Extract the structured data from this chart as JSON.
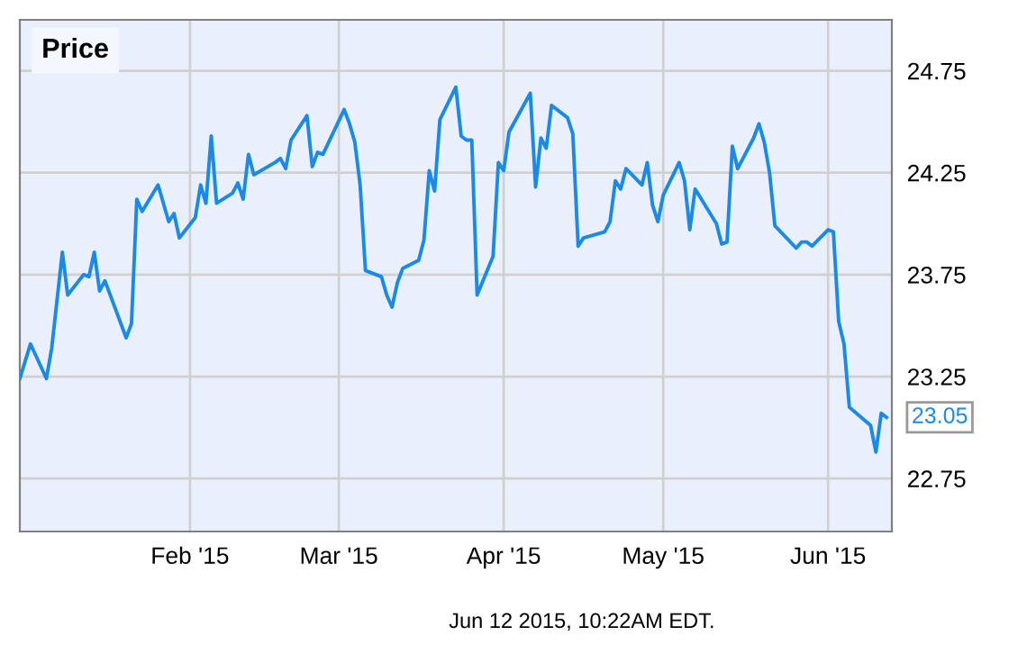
{
  "chart_data": {
    "type": "line",
    "title": "Price",
    "x": [
      "2014-12-31",
      "2015-01-02",
      "2015-01-05",
      "2015-01-06",
      "2015-01-08",
      "2015-01-09",
      "2015-01-12",
      "2015-01-13",
      "2015-01-14",
      "2015-01-15",
      "2015-01-16",
      "2015-01-20",
      "2015-01-21",
      "2015-01-22",
      "2015-01-23",
      "2015-01-26",
      "2015-01-28",
      "2015-01-29",
      "2015-01-30",
      "2015-02-02",
      "2015-02-03",
      "2015-02-04",
      "2015-02-05",
      "2015-02-06",
      "2015-02-09",
      "2015-02-10",
      "2015-02-11",
      "2015-02-12",
      "2015-02-13",
      "2015-02-17",
      "2015-02-18",
      "2015-02-19",
      "2015-02-20",
      "2015-02-23",
      "2015-02-24",
      "2015-02-25",
      "2015-02-26",
      "2015-03-02",
      "2015-03-03",
      "2015-03-04",
      "2015-03-05",
      "2015-03-06",
      "2015-03-09",
      "2015-03-10",
      "2015-03-11",
      "2015-03-12",
      "2015-03-13",
      "2015-03-16",
      "2015-03-17",
      "2015-03-18",
      "2015-03-19",
      "2015-03-20",
      "2015-03-23",
      "2015-03-24",
      "2015-03-25",
      "2015-03-26",
      "2015-03-27",
      "2015-03-30",
      "2015-03-31",
      "2015-04-01",
      "2015-04-02",
      "2015-04-06",
      "2015-04-07",
      "2015-04-08",
      "2015-04-09",
      "2015-04-10",
      "2015-04-13",
      "2015-04-14",
      "2015-04-15",
      "2015-04-16",
      "2015-04-20",
      "2015-04-21",
      "2015-04-22",
      "2015-04-23",
      "2015-04-24",
      "2015-04-27",
      "2015-04-28",
      "2015-04-29",
      "2015-04-30",
      "2015-05-01",
      "2015-05-04",
      "2015-05-05",
      "2015-05-06",
      "2015-05-07",
      "2015-05-11",
      "2015-05-12",
      "2015-05-13",
      "2015-05-14",
      "2015-05-15",
      "2015-05-18",
      "2015-05-19",
      "2015-05-20",
      "2015-05-21",
      "2015-05-22",
      "2015-05-26",
      "2015-05-27",
      "2015-05-28",
      "2015-05-29",
      "2015-06-01",
      "2015-06-02",
      "2015-06-03",
      "2015-06-04",
      "2015-06-05",
      "2015-06-09",
      "2015-06-10",
      "2015-06-11",
      "2015-06-12"
    ],
    "series": [
      {
        "color": "#1a8ae8",
        "values": [
          23.24,
          23.41,
          23.24,
          23.39,
          23.86,
          23.65,
          23.75,
          23.74,
          23.86,
          23.67,
          23.72,
          23.44,
          23.51,
          24.12,
          24.06,
          24.19,
          24.01,
          24.05,
          23.93,
          24.03,
          24.19,
          24.1,
          24.43,
          24.1,
          24.15,
          24.2,
          24.12,
          24.34,
          24.24,
          24.3,
          24.32,
          24.27,
          24.41,
          24.53,
          24.28,
          24.35,
          24.34,
          24.56,
          24.49,
          24.4,
          24.19,
          23.77,
          23.74,
          23.65,
          23.59,
          23.71,
          23.78,
          23.82,
          23.92,
          24.26,
          24.16,
          24.51,
          24.67,
          24.43,
          24.41,
          24.41,
          23.65,
          23.84,
          24.3,
          24.26,
          24.45,
          24.64,
          24.18,
          24.42,
          24.37,
          24.58,
          24.52,
          24.44,
          23.89,
          23.93,
          23.96,
          24.01,
          24.21,
          24.17,
          24.27,
          24.19,
          24.3,
          24.09,
          24.01,
          24.14,
          24.3,
          24.21,
          23.97,
          24.17,
          24.0,
          23.9,
          23.91,
          24.38,
          24.27,
          24.42,
          24.49,
          24.4,
          24.25,
          23.99,
          23.88,
          23.91,
          23.91,
          23.89,
          23.97,
          23.96,
          23.52,
          23.41,
          23.1,
          23.01,
          22.88,
          23.07,
          23.05
        ],
        "value_labels": [
          null,
          null,
          null,
          null,
          null,
          null,
          null,
          null,
          null,
          null,
          null,
          null,
          null,
          null,
          null,
          null,
          null,
          null,
          null,
          null,
          null,
          null,
          null,
          null,
          null,
          null,
          null,
          null,
          null,
          null,
          null,
          null,
          null,
          null,
          null,
          null,
          null,
          null,
          null,
          null,
          null,
          null,
          null,
          null,
          null,
          null,
          null,
          null,
          null,
          null,
          null,
          null,
          null,
          null,
          null,
          null,
          null,
          null,
          null,
          null,
          null,
          null,
          null,
          null,
          null,
          null,
          null,
          null,
          null,
          null,
          null,
          null,
          null,
          null,
          null,
          null,
          null,
          null,
          null,
          null,
          null,
          null,
          null,
          null,
          null,
          null,
          null,
          null,
          null,
          null,
          null,
          null,
          null,
          null,
          null,
          null,
          null,
          null,
          null,
          null,
          null,
          null,
          null,
          null,
          null,
          null,
          "23.05"
        ]
      }
    ],
    "xlim": [
      "2014-12-31",
      "2015-06-13"
    ],
    "xticks": [
      {
        "value": "2015-02-01",
        "label": "Feb '15"
      },
      {
        "value": "2015-03-01",
        "label": "Mar '15"
      },
      {
        "value": "2015-04-01",
        "label": "Apr '15"
      },
      {
        "value": "2015-05-01",
        "label": "May '15"
      },
      {
        "value": "2015-06-01",
        "label": "Jun '15"
      }
    ],
    "ylim": [
      22.49,
      25.0
    ],
    "yticks": [
      {
        "value": 22.75,
        "label": "22.75"
      },
      {
        "value": 23.25,
        "label": "23.25"
      },
      {
        "value": 23.75,
        "label": "23.75"
      },
      {
        "value": 24.25,
        "label": "24.25"
      },
      {
        "value": 24.75,
        "label": "24.75"
      }
    ],
    "grid": true,
    "marker": "none",
    "line_style": "solid",
    "annotations": [
      "Jun 12 2015, 10:22AM EDT."
    ]
  }
}
